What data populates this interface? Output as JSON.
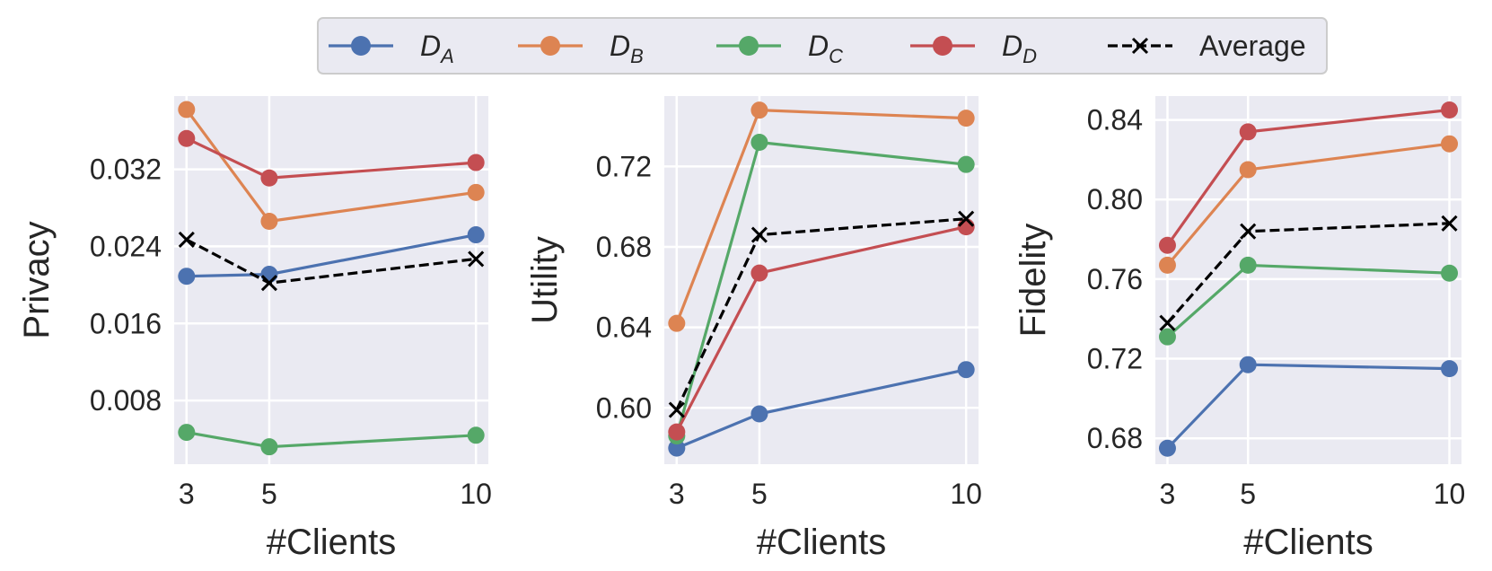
{
  "chart_data": [
    {
      "type": "line",
      "ylabel": "Privacy",
      "xlabel": "#Clients",
      "x": [
        3,
        5,
        10
      ],
      "xticks": [
        "3",
        "5",
        "10"
      ],
      "ylim": [
        0.0014,
        0.0396
      ],
      "yticks": [
        0.008,
        0.016,
        0.024,
        0.032
      ],
      "ytick_labels": [
        "0.008",
        "0.016",
        "0.024",
        "0.032"
      ],
      "series": [
        {
          "name": "D_A",
          "values": [
            0.0209,
            0.0211,
            0.0252
          ]
        },
        {
          "name": "D_B",
          "values": [
            0.0382,
            0.0266,
            0.0296
          ]
        },
        {
          "name": "D_C",
          "values": [
            0.0047,
            0.0032,
            0.0044
          ]
        },
        {
          "name": "D_D",
          "values": [
            0.0352,
            0.0311,
            0.0327
          ]
        },
        {
          "name": "Average",
          "values": [
            0.0247,
            0.0202,
            0.0227
          ]
        }
      ]
    },
    {
      "type": "line",
      "ylabel": "Utility",
      "xlabel": "#Clients",
      "x": [
        3,
        5,
        10
      ],
      "xticks": [
        "3",
        "5",
        "10"
      ],
      "ylim": [
        0.572,
        0.755
      ],
      "yticks": [
        0.6,
        0.64,
        0.68,
        0.72
      ],
      "ytick_labels": [
        "0.60",
        "0.64",
        "0.68",
        "0.72"
      ],
      "series": [
        {
          "name": "D_A",
          "values": [
            0.58,
            0.597,
            0.619
          ]
        },
        {
          "name": "D_B",
          "values": [
            0.642,
            0.748,
            0.744
          ]
        },
        {
          "name": "D_C",
          "values": [
            0.586,
            0.732,
            0.721
          ]
        },
        {
          "name": "D_D",
          "values": [
            0.588,
            0.667,
            0.69
          ]
        },
        {
          "name": "Average",
          "values": [
            0.599,
            0.686,
            0.694
          ]
        }
      ]
    },
    {
      "type": "line",
      "ylabel": "Fidelity",
      "xlabel": "#Clients",
      "x": [
        3,
        5,
        10
      ],
      "xticks": [
        "3",
        "5",
        "10"
      ],
      "ylim": [
        0.667,
        0.852
      ],
      "yticks": [
        0.68,
        0.72,
        0.76,
        0.8,
        0.84
      ],
      "ytick_labels": [
        "0.68",
        "0.72",
        "0.76",
        "0.80",
        "0.84"
      ],
      "series": [
        {
          "name": "D_A",
          "values": [
            0.675,
            0.717,
            0.715
          ]
        },
        {
          "name": "D_B",
          "values": [
            0.767,
            0.815,
            0.828
          ]
        },
        {
          "name": "D_C",
          "values": [
            0.731,
            0.767,
            0.763
          ]
        },
        {
          "name": "D_D",
          "values": [
            0.777,
            0.834,
            0.845
          ]
        },
        {
          "name": "Average",
          "values": [
            0.738,
            0.784,
            0.788
          ]
        }
      ]
    }
  ],
  "legend": {
    "placement": "top-center",
    "entries": [
      {
        "label": "D",
        "sub": "A",
        "color": "#4c72b0",
        "marker": "circle"
      },
      {
        "label": "D",
        "sub": "B",
        "color": "#dd8452",
        "marker": "circle"
      },
      {
        "label": "D",
        "sub": "C",
        "color": "#55a868",
        "marker": "circle"
      },
      {
        "label": "D",
        "sub": "D",
        "color": "#c44e52",
        "marker": "circle"
      },
      {
        "label": "Average",
        "sub": "",
        "color": "#000000",
        "marker": "x"
      }
    ]
  },
  "colors": {
    "D_A": "#4c72b0",
    "D_B": "#dd8452",
    "D_C": "#55a868",
    "D_D": "#c44e52",
    "Average": "#000000"
  }
}
